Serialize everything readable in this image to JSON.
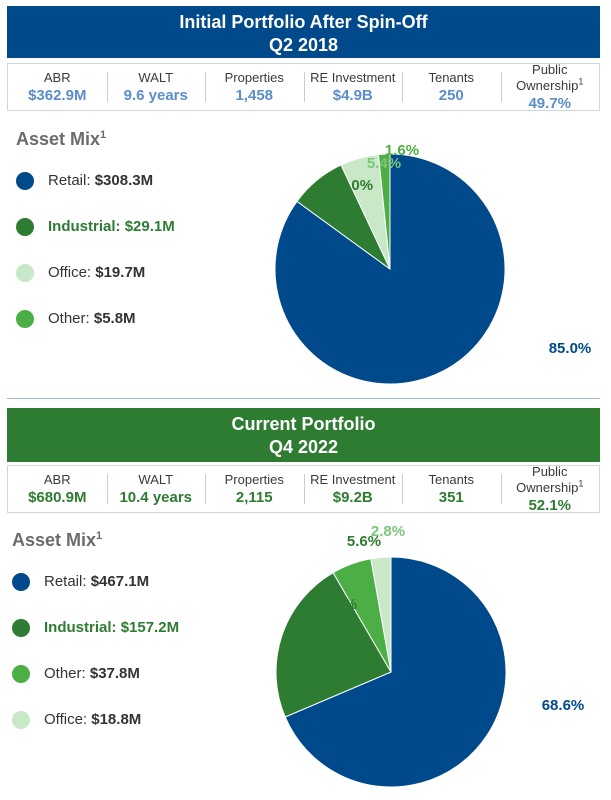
{
  "sections": [
    {
      "title_line1": "Initial Portfolio After Spin-Off",
      "title_line2": "Q2 2018",
      "banner_color": "#00498a",
      "metrics": [
        {
          "label": "ABR",
          "value": "$362.9M"
        },
        {
          "label": "WALT",
          "value": "9.6 years"
        },
        {
          "label": "Properties",
          "value": "1,458"
        },
        {
          "label": "RE Investment",
          "value": "$4.9B"
        },
        {
          "label": "Tenants",
          "value": "250"
        },
        {
          "label": "Public Ownership",
          "sup": "1",
          "value": "49.7%"
        }
      ],
      "asset_mix_title": "Asset Mix",
      "asset_mix_sup": "1",
      "legend": [
        {
          "name": "Retail:",
          "value": "$308.3M",
          "color": "#00498a",
          "text_color": "#333333"
        },
        {
          "name": "Industrial:",
          "value": "$29.1M",
          "color": "#2e7c32",
          "text_color": "#2e7c32"
        },
        {
          "name": "Office:",
          "value": "$19.7M",
          "color": "#c8e8c8",
          "text_color": "#333333"
        },
        {
          "name": "Other:",
          "value": "$5.8M",
          "color": "#4caf45",
          "text_color": "#333333"
        }
      ]
    },
    {
      "title_line1": "Current Portfolio",
      "title_line2": "Q4 2022",
      "banner_color": "#2e7c32",
      "metrics": [
        {
          "label": "ABR",
          "value": "$680.9M"
        },
        {
          "label": "WALT",
          "value": "10.4 years"
        },
        {
          "label": "Properties",
          "value": "2,115"
        },
        {
          "label": "RE Investment",
          "value": "$9.2B"
        },
        {
          "label": "Tenants",
          "value": "351"
        },
        {
          "label": "Public Ownership",
          "sup": "1",
          "value": "52.1%"
        }
      ],
      "asset_mix_title": "Asset Mix",
      "asset_mix_sup": "1",
      "legend": [
        {
          "name": "Retail:",
          "value": "$467.1M",
          "color": "#00498a",
          "text_color": "#333333"
        },
        {
          "name": "Industrial:",
          "value": "$157.2M",
          "color": "#2e7c32",
          "text_color": "#2e7c32"
        },
        {
          "name": "Other:",
          "value": "$37.8M",
          "color": "#4caf45",
          "text_color": "#333333"
        },
        {
          "name": "Office:",
          "value": "$18.8M",
          "color": "#c8e8c8",
          "text_color": "#333333"
        }
      ]
    }
  ],
  "chart_data": [
    {
      "type": "pie",
      "title": "",
      "slices": [
        {
          "name": "Retail",
          "value": 85.0,
          "label": "85.0%",
          "color": "#00498a",
          "label_color": "#00498a"
        },
        {
          "name": "Industrial",
          "value": 8.0,
          "label": "8.0%",
          "color": "#2e7c32",
          "label_color": "#2e7c32"
        },
        {
          "name": "Office",
          "value": 5.4,
          "label": "5.4%",
          "color": "#c8e8c8",
          "label_color": "#7cc57a"
        },
        {
          "name": "Other",
          "value": 1.6,
          "label": "1.6%",
          "color": "#4caf45",
          "label_color": "#4caf45"
        }
      ]
    },
    {
      "type": "pie",
      "title": "",
      "slices": [
        {
          "name": "Retail",
          "value": 68.6,
          "label": "68.6%",
          "color": "#00498a",
          "label_color": "#00498a"
        },
        {
          "name": "Industrial",
          "value": 23.0,
          "label": "23.0%",
          "color": "#2e7c32",
          "label_color": "#2e7c32"
        },
        {
          "name": "Other",
          "value": 5.6,
          "label": "5.6%",
          "color": "#4caf45",
          "label_color": "#2e7c32"
        },
        {
          "name": "Office",
          "value": 2.8,
          "label": "2.8%",
          "color": "#c8e8c8",
          "label_color": "#7cc57a"
        }
      ]
    }
  ]
}
